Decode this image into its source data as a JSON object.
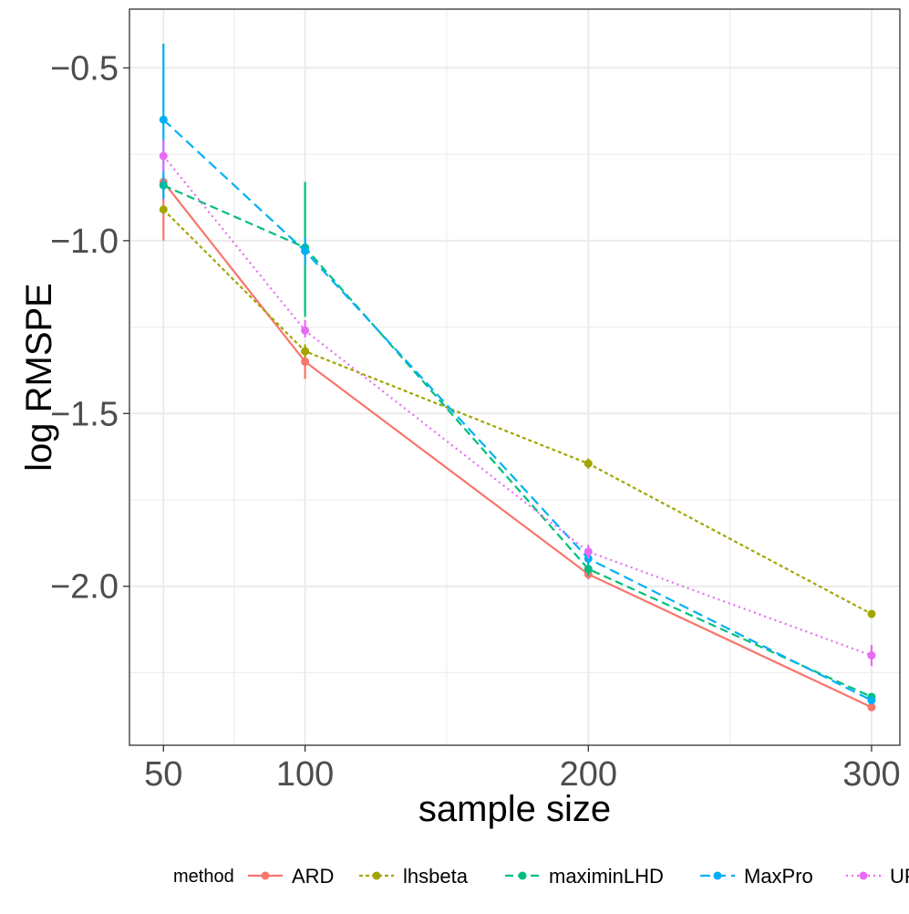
{
  "chart_data": {
    "type": "line",
    "title": "",
    "xlabel": "sample size",
    "ylabel": "log RMSPE",
    "x": [
      50,
      100,
      200,
      300
    ],
    "xticks": [
      50,
      100,
      200,
      300
    ],
    "xtick_labels": [
      "50",
      "100",
      "200",
      "300"
    ],
    "xlim": [
      38,
      310
    ],
    "yticks": [
      -2.0,
      -1.5,
      -1.0,
      -0.5
    ],
    "ytick_labels": [
      "−2.0",
      "−1.5",
      "−1.0",
      "−0.5"
    ],
    "ylim": [
      -2.46,
      -0.33
    ],
    "grid": true,
    "legend_title": "method",
    "legend_position": "bottom",
    "series": [
      {
        "name": "ARD",
        "color": "#F8766D",
        "dash": "solid",
        "values": [
          -0.83,
          -1.35,
          -1.965,
          -2.35
        ],
        "lower": [
          -1.0,
          -1.4,
          -1.98,
          -2.36
        ],
        "upper": [
          -0.83,
          -1.31,
          -1.955,
          -2.34
        ]
      },
      {
        "name": "lhsbeta",
        "color": "#A3A500",
        "dash": "dotted-short",
        "values": [
          -0.91,
          -1.32,
          -1.645,
          -2.08
        ],
        "lower": [
          -0.92,
          -1.34,
          -1.66,
          -2.09
        ],
        "upper": [
          -0.9,
          -1.3,
          -1.63,
          -2.07
        ]
      },
      {
        "name": "maximinLHD",
        "color": "#00BF7D",
        "dash": "dashed",
        "values": [
          -0.84,
          -1.02,
          -1.95,
          -2.32
        ],
        "lower": [
          -0.86,
          -1.22,
          -1.97,
          -2.33
        ],
        "upper": [
          -0.82,
          -0.83,
          -1.93,
          -2.31
        ]
      },
      {
        "name": "MaxPro",
        "color": "#00B0F6",
        "dash": "long-dashed",
        "values": [
          -0.65,
          -1.03,
          -1.92,
          -2.33
        ],
        "lower": [
          -0.88,
          -1.07,
          -1.94,
          -2.34
        ],
        "upper": [
          -0.43,
          -0.99,
          -1.9,
          -2.32
        ]
      },
      {
        "name": "UPD",
        "color": "#E76BF3",
        "dash": "dotted",
        "values": [
          -0.755,
          -1.26,
          -1.9,
          -2.2
        ],
        "lower": [
          -0.8,
          -1.28,
          -1.92,
          -2.23
        ],
        "upper": [
          -0.71,
          -1.23,
          -1.88,
          -2.17
        ]
      }
    ]
  }
}
